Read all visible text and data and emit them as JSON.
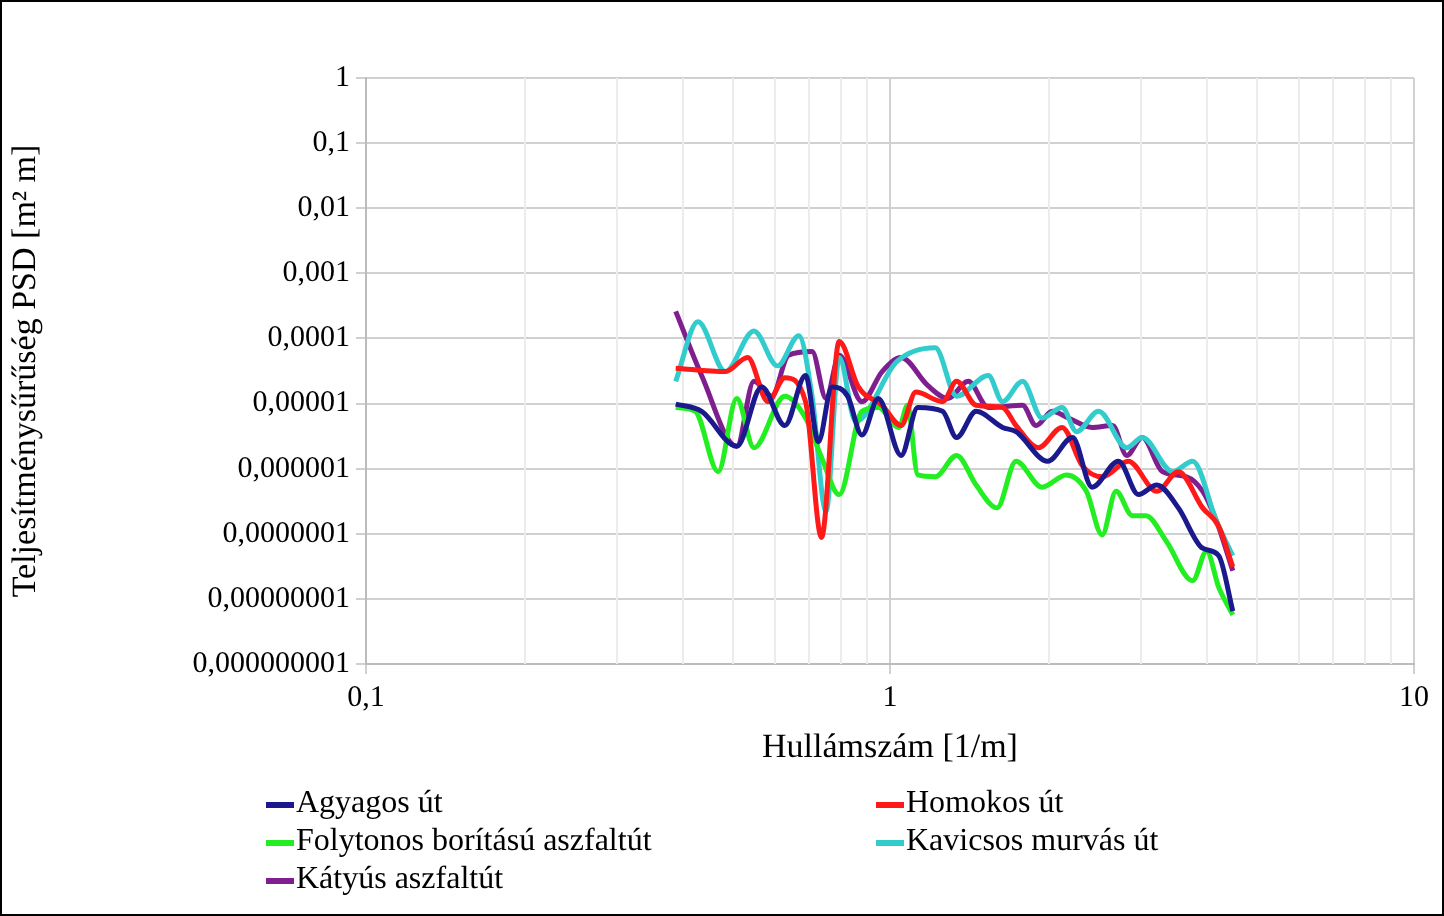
{
  "chart_data": {
    "type": "line",
    "xlabel": "Hullámszám [1/m]",
    "ylabel": "Teljesítménysűrűség PSD [m² m]",
    "log": "xy",
    "grid": true,
    "legend": "bottom",
    "marker": "none",
    "xlim": [
      0.1,
      10
    ],
    "xticks": [
      {
        "value": 0.1,
        "label": "0,1"
      },
      1,
      10
    ],
    "ylim": [
      1e-09,
      1
    ],
    "yticks": [
      {
        "value": 1e-09,
        "label": "0,000000001"
      },
      {
        "value": 1e-08,
        "label": "0,00000001"
      },
      {
        "value": 1e-07,
        "label": "0,0000001"
      },
      {
        "value": 1e-06,
        "label": "0,000001"
      },
      {
        "value": 1e-05,
        "label": "0,00001"
      },
      {
        "value": 0.0001,
        "label": "0,0001"
      },
      {
        "value": 0.001,
        "label": "0,001"
      },
      {
        "value": 0.01,
        "label": "0,01"
      },
      {
        "value": 0.1,
        "label": "0,1"
      },
      1
    ],
    "series": [
      {
        "name": "Agyagos út",
        "color": "#1a1a8c",
        "x": [
          0.39,
          0.437,
          0.51,
          0.569,
          0.63,
          0.69,
          0.73,
          0.775,
          0.83,
          0.884,
          0.95,
          1.05,
          1.13,
          1.26,
          1.34,
          1.46,
          1.64,
          1.74,
          2.0,
          2.23,
          2.43,
          2.73,
          2.98,
          3.23,
          3.55,
          3.95,
          4.24,
          4.51
        ],
        "values": [
          9.8e-06,
          7.6e-06,
          2.2e-06,
          1.8e-05,
          4.6e-06,
          2.7e-05,
          2.6e-06,
          1.8e-05,
          1.3e-05,
          3.3e-06,
          1.2e-05,
          1.6e-06,
          8.7e-06,
          7.6e-06,
          3e-06,
          7.6e-06,
          4.3e-06,
          3.7e-06,
          1.3e-06,
          3e-06,
          5.2e-07,
          1.3e-06,
          4e-07,
          5.6e-07,
          2.5e-07,
          6e-08,
          4.6e-08,
          6.5e-09
        ]
      },
      {
        "name": "Homokos út",
        "color": "#ff1a1a",
        "x": [
          0.39,
          0.485,
          0.535,
          0.585,
          0.63,
          0.69,
          0.74,
          0.8,
          0.87,
          0.966,
          1.05,
          1.12,
          1.26,
          1.34,
          1.46,
          1.64,
          1.74,
          1.92,
          2.13,
          2.33,
          2.54,
          2.85,
          3.23,
          3.55,
          3.95,
          4.24,
          4.51
        ],
        "values": [
          3.5e-05,
          3.1e-05,
          5.1e-05,
          1.07e-05,
          2.5e-05,
          1.07e-05,
          8.8e-08,
          9e-05,
          1.8e-05,
          9.4e-06,
          4.6e-06,
          1.5e-05,
          1.07e-05,
          2.2e-05,
          9.4e-06,
          8.7e-06,
          4.6e-06,
          2.1e-06,
          4.3e-06,
          1.1e-06,
          7.5e-07,
          1.3e-06,
          4.5e-07,
          9e-07,
          2.5e-07,
          1.3e-07,
          3.1e-08
        ]
      },
      {
        "name": "Folytonos borítású aszfaltút",
        "color": "#22ee22",
        "x": [
          0.39,
          0.425,
          0.47,
          0.51,
          0.55,
          0.63,
          0.69,
          0.74,
          0.8,
          0.884,
          0.95,
          1.04,
          1.08,
          1.13,
          1.22,
          1.34,
          1.46,
          1.6,
          1.74,
          1.95,
          2.17,
          2.37,
          2.54,
          2.7,
          2.9,
          3.08,
          3.37,
          3.78,
          4.02,
          4.24,
          4.51
        ],
        "values": [
          8.7e-06,
          7.6e-06,
          9e-07,
          1.2e-05,
          2.1e-06,
          1.3e-05,
          6e-06,
          1.5e-06,
          4e-07,
          7.6e-06,
          8.7e-06,
          4.3e-06,
          9.4e-06,
          8e-07,
          7.5e-07,
          1.6e-06,
          5.6e-07,
          2.5e-07,
          1.3e-06,
          5.2e-07,
          8e-07,
          4.5e-07,
          9.6e-08,
          4.5e-07,
          1.9e-07,
          1.9e-07,
          7.6e-08,
          1.9e-08,
          5.4e-08,
          1.5e-08,
          5.7e-09
        ]
      },
      {
        "name": "Kavicsos murvás út",
        "color": "#33cccc",
        "x": [
          0.39,
          0.43,
          0.485,
          0.55,
          0.61,
          0.67,
          0.71,
          0.755,
          0.8,
          0.86,
          1.03,
          1.22,
          1.34,
          1.54,
          1.64,
          1.79,
          1.95,
          2.13,
          2.27,
          2.5,
          2.83,
          3.03,
          3.46,
          3.78,
          4.2,
          4.51
        ],
        "values": [
          2.2e-05,
          0.00018,
          3.1e-05,
          0.00013,
          3.8e-05,
          0.00011,
          1.3e-05,
          2.2e-07,
          5.1e-05,
          5.3e-06,
          4.4e-05,
          7.2e-05,
          1.3e-05,
          2.7e-05,
          1.07e-05,
          2.2e-05,
          6e-06,
          8.7e-06,
          3.7e-06,
          7.6e-06,
          2.1e-06,
          3e-06,
          9e-07,
          1.3e-06,
          1.55e-07,
          4.6e-08
        ]
      },
      {
        "name": "Kátyús aszfaltút",
        "color": "#7f1f8f",
        "x": [
          0.39,
          0.437,
          0.51,
          0.55,
          0.595,
          0.64,
          0.71,
          0.755,
          0.8,
          0.884,
          0.966,
          1.05,
          1.18,
          1.29,
          1.41,
          1.54,
          1.79,
          1.9,
          2.04,
          2.19,
          2.43,
          2.66,
          2.83,
          3.03,
          3.31,
          3.68,
          3.95,
          4.2,
          4.51
        ],
        "values": [
          0.00026,
          2.7e-05,
          2.2e-06,
          2.2e-05,
          1.3e-05,
          5.5e-05,
          6.3e-05,
          1.2e-05,
          5.5e-05,
          1.07e-05,
          3.1e-05,
          5.1e-05,
          1.9e-05,
          1.2e-05,
          2.2e-05,
          8.7e-06,
          9.4e-06,
          4.6e-06,
          7.6e-06,
          6e-06,
          4.3e-06,
          4.6e-06,
          1.6e-06,
          3e-06,
          9e-07,
          7.5e-07,
          4.5e-07,
          1.55e-07,
          2.7e-08
        ]
      }
    ]
  }
}
